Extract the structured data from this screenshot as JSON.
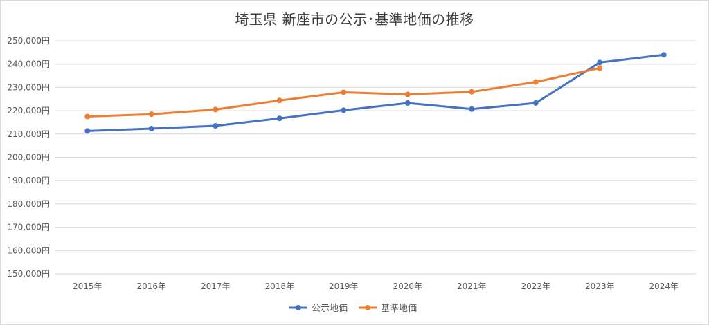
{
  "chart_data": {
    "type": "line",
    "title": "埼玉県 新座市の公示･基準地価の推移",
    "categories": [
      "2015年",
      "2016年",
      "2017年",
      "2018年",
      "2019年",
      "2020年",
      "2021年",
      "2022年",
      "2023年",
      "2024年"
    ],
    "series": [
      {
        "name": "公示地価",
        "color": "#4472c4",
        "values": [
          211300,
          212300,
          213500,
          216700,
          220200,
          223300,
          220700,
          223300,
          240700,
          244000
        ]
      },
      {
        "name": "基準地価",
        "color": "#ed7d31",
        "values": [
          217500,
          218500,
          220500,
          224400,
          227900,
          227000,
          228100,
          232300,
          238300,
          null
        ]
      }
    ],
    "y_ticks": [
      "150,000円",
      "160,000円",
      "170,000円",
      "180,000円",
      "190,000円",
      "200,000円",
      "210,000円",
      "220,000円",
      "230,000円",
      "240,000円",
      "250,000円"
    ],
    "ylim": [
      150000,
      250000
    ],
    "grid": true,
    "legend_position": "bottom"
  }
}
